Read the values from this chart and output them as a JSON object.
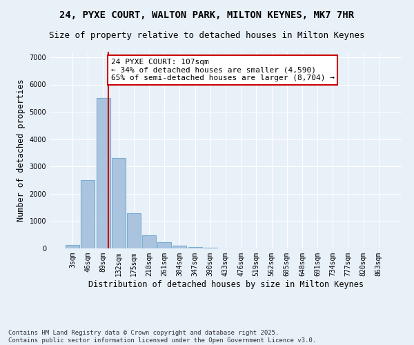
{
  "title": "24, PYXE COURT, WALTON PARK, MILTON KEYNES, MK7 7HR",
  "subtitle": "Size of property relative to detached houses in Milton Keynes",
  "xlabel": "Distribution of detached houses by size in Milton Keynes",
  "ylabel": "Number of detached properties",
  "categories": [
    "3sqm",
    "46sqm",
    "89sqm",
    "132sqm",
    "175sqm",
    "218sqm",
    "261sqm",
    "304sqm",
    "347sqm",
    "390sqm",
    "433sqm",
    "476sqm",
    "519sqm",
    "562sqm",
    "605sqm",
    "648sqm",
    "691sqm",
    "734sqm",
    "777sqm",
    "820sqm",
    "863sqm"
  ],
  "values": [
    120,
    2500,
    5500,
    3300,
    1300,
    480,
    220,
    100,
    60,
    20,
    10,
    5,
    0,
    0,
    0,
    0,
    0,
    0,
    0,
    0,
    0
  ],
  "bar_color": "#aac4e0",
  "bar_edge_color": "#7aaed0",
  "vline_x_index": 2.35,
  "vline_color": "#cc0000",
  "annotation_text": "24 PYXE COURT: 107sqm\n← 34% of detached houses are smaller (4,590)\n65% of semi-detached houses are larger (8,704) →",
  "annotation_box_color": "#ffffff",
  "annotation_box_edge_color": "#cc0000",
  "ylim": [
    0,
    7200
  ],
  "yticks": [
    0,
    1000,
    2000,
    3000,
    4000,
    5000,
    6000,
    7000
  ],
  "bg_color": "#e8f0f8",
  "grid_color": "#ffffff",
  "footer": "Contains HM Land Registry data © Crown copyright and database right 2025.\nContains public sector information licensed under the Open Government Licence v3.0.",
  "title_fontsize": 10,
  "subtitle_fontsize": 9,
  "axis_label_fontsize": 8.5,
  "tick_fontsize": 7,
  "annotation_fontsize": 8,
  "footer_fontsize": 6.5
}
